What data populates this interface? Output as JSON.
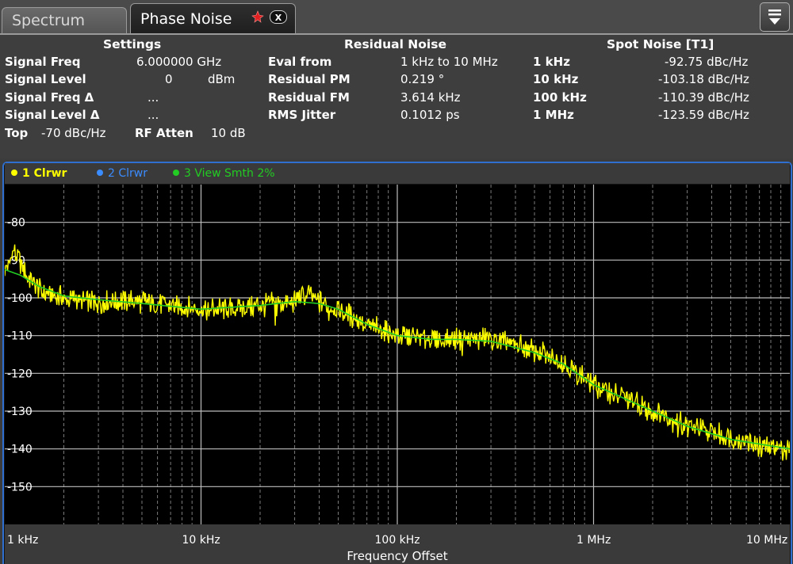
{
  "tabs": [
    {
      "label": "Spectrum",
      "active": false
    },
    {
      "label": "Phase Noise",
      "active": true
    }
  ],
  "settings": {
    "title": "Settings",
    "rows": [
      {
        "label": "Signal Freq",
        "value": "6.000000 GHz"
      },
      {
        "label": "Signal Level",
        "value": "0",
        "unit": "dBm"
      },
      {
        "label": "Signal Freq Δ",
        "value": "..."
      },
      {
        "label": "Signal Level Δ",
        "value": "..."
      }
    ],
    "top_label": "Top",
    "top_value": "-70 dBc/Hz",
    "rf_atten_label": "RF Atten",
    "rf_atten_value": "10 dB"
  },
  "residual": {
    "title": "Residual Noise",
    "rows": [
      {
        "label": "Eval from",
        "value": "1 kHz to 10 MHz"
      },
      {
        "label": "Residual PM",
        "value": "0.219 °"
      },
      {
        "label": "Residual FM",
        "value": "3.614 kHz"
      },
      {
        "label": "RMS Jitter",
        "value": "0.1012 ps"
      }
    ]
  },
  "spot": {
    "title": "Spot Noise [T1]",
    "rows": [
      {
        "label": "1 kHz",
        "value": "-92.75 dBc/Hz"
      },
      {
        "label": "10 kHz",
        "value": "-103.18 dBc/Hz"
      },
      {
        "label": "100 kHz",
        "value": "-110.39 dBc/Hz"
      },
      {
        "label": "1 MHz",
        "value": "-123.59 dBc/Hz"
      }
    ]
  },
  "legend": [
    {
      "label": "1 Clrwr",
      "color": "#ffff00"
    },
    {
      "label": "2 Clrwr",
      "color": "#3a8cff"
    },
    {
      "label": "3 View Smth 2%",
      "color": "#22cc22"
    }
  ],
  "chart_data": {
    "type": "line",
    "title": "",
    "xlabel": "Frequency Offset",
    "ylabel": "",
    "x_scale": "log",
    "xlim_hz": [
      1000,
      10000000
    ],
    "ylim": [
      -160,
      -70
    ],
    "x_tick_labels": [
      "1 kHz",
      "10 kHz",
      "100 kHz",
      "1 MHz",
      "10 MHz"
    ],
    "y_tick_labels": [
      "-80",
      "-90",
      "-100",
      "-110",
      "-120",
      "-130",
      "-140",
      "-150"
    ],
    "grid": true,
    "series": [
      {
        "name": "1 Clrwr",
        "color": "#ffff00",
        "x_hz": [
          1000,
          1050,
          1100,
          1300,
          1600,
          2000,
          3000,
          5000,
          7000,
          10000,
          15000,
          20000,
          30000,
          35000,
          40000,
          50000,
          70000,
          100000,
          150000,
          200000,
          300000,
          500000,
          700000,
          1000000,
          2000000,
          3000000,
          5000000,
          7000000,
          10000000
        ],
        "y_dbc": [
          -92,
          -91,
          -87,
          -94,
          -99,
          -100,
          -101,
          -101,
          -102,
          -103,
          -103,
          -102,
          -101,
          -99,
          -101,
          -103,
          -107,
          -110,
          -111,
          -111,
          -111,
          -114,
          -117,
          -123,
          -130,
          -134,
          -137,
          -139,
          -140
        ]
      },
      {
        "name": "3 View Smth 2%",
        "color": "#22cc22",
        "x_hz": [
          1000,
          1200,
          1500,
          2000,
          3000,
          5000,
          10000,
          20000,
          30000,
          40000,
          50000,
          70000,
          100000,
          150000,
          200000,
          300000,
          500000,
          700000,
          1000000,
          2000000,
          3000000,
          5000000,
          10000000
        ],
        "y_dbc": [
          -92.5,
          -94,
          -97,
          -99.5,
          -100.5,
          -101.5,
          -103,
          -102,
          -101,
          -101.5,
          -103,
          -107,
          -110,
          -111,
          -111,
          -111.5,
          -114.5,
          -117.5,
          -123,
          -130,
          -134,
          -137.5,
          -140
        ]
      }
    ]
  }
}
